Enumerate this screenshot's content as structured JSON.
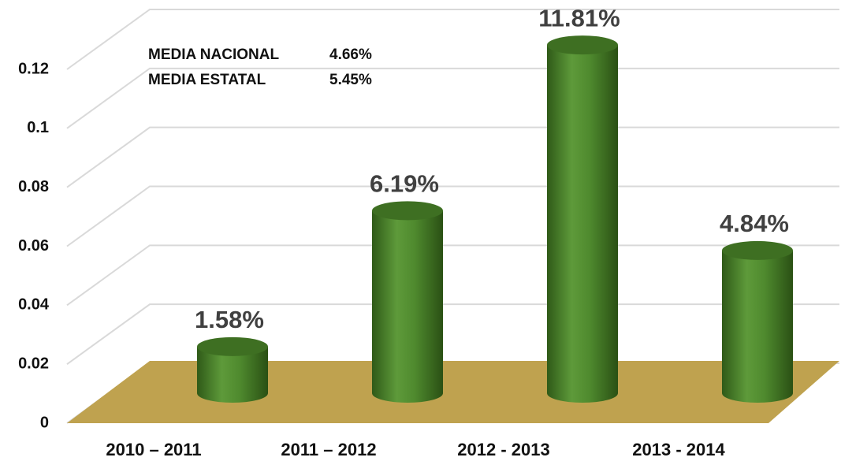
{
  "chart_data": {
    "type": "cylinder-bar",
    "categories": [
      "2010 – 2011",
      "2011 – 2012",
      "2012 - 2013",
      "2013 - 2014"
    ],
    "values": [
      0.0158,
      0.0619,
      0.1181,
      0.0484
    ],
    "value_labels": [
      "1.58%",
      "6.19%",
      "11.81%",
      "4.84%"
    ],
    "color": "#4f8a2e",
    "floor_color": "#bfa24f",
    "ylim": [
      0,
      0.12
    ],
    "yticks": [
      0,
      0.02,
      0.04,
      0.06,
      0.08,
      0.1,
      0.12
    ],
    "grid": true,
    "annotations": [
      {
        "label": "MEDIA NACIONAL",
        "value": "4.66%"
      },
      {
        "label": "MEDIA ESTATAL",
        "value": "5.45%"
      }
    ]
  }
}
